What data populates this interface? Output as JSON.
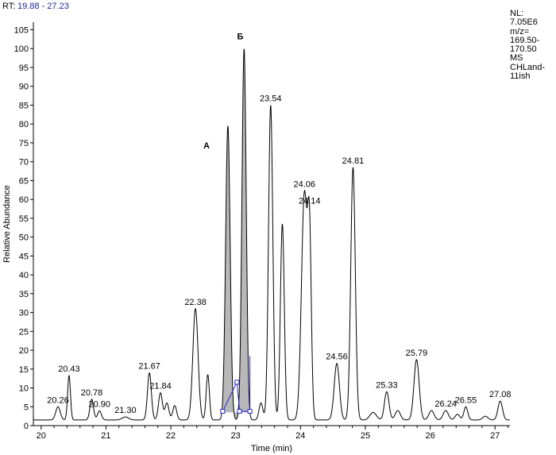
{
  "header": {
    "rt_label": "RT:",
    "rt_range": "19.88 - 27.23",
    "info_lines": [
      "NL:",
      "7.05E6",
      "m/z=",
      "169.50-",
      "170.50",
      "MS",
      "CHLand-",
      "11ish"
    ]
  },
  "chart_data": {
    "type": "line",
    "xlabel": "Time (min)",
    "ylabel": "Relative Abundance",
    "xlim": [
      19.88,
      27.23
    ],
    "ylim": [
      0,
      107
    ],
    "xticks": [
      "20",
      "21",
      "22",
      "23",
      "24",
      "25",
      "26",
      "27"
    ],
    "yticks": [
      "0",
      "5",
      "10",
      "15",
      "20",
      "25",
      "30",
      "35",
      "40",
      "45",
      "50",
      "55",
      "60",
      "65",
      "70",
      "75",
      "80",
      "85",
      "90",
      "95",
      "100",
      "105"
    ],
    "baseline": 1.5,
    "peaks": [
      {
        "x": 20.26,
        "y": 3.5,
        "w": 0.035,
        "label": "20.26"
      },
      {
        "x": 20.43,
        "y": 11.8,
        "w": 0.022,
        "label": "20.43"
      },
      {
        "x": 20.78,
        "y": 5.5,
        "w": 0.028,
        "label": "20.78"
      },
      {
        "x": 20.9,
        "y": 2.4,
        "w": 0.03,
        "label": "20.90"
      },
      {
        "x": 21.3,
        "y": 0.8,
        "w": 0.05,
        "label": "21.30"
      },
      {
        "x": 21.67,
        "y": 12.5,
        "w": 0.03,
        "label": "21.67"
      },
      {
        "x": 21.84,
        "y": 7.2,
        "w": 0.03,
        "label": "21.84"
      },
      {
        "x": 21.94,
        "y": 4.5,
        "w": 0.03,
        "label": ""
      },
      {
        "x": 22.06,
        "y": 3.8,
        "w": 0.03,
        "label": ""
      },
      {
        "x": 22.38,
        "y": 29.5,
        "w": 0.04,
        "label": "22.38"
      },
      {
        "x": 22.57,
        "y": 12.0,
        "w": 0.025,
        "label": ""
      },
      {
        "x": 22.88,
        "y": 78.0,
        "w": 0.035,
        "label": ""
      },
      {
        "x": 23.13,
        "y": 98.5,
        "w": 0.033,
        "label": ""
      },
      {
        "x": 23.39,
        "y": 4.5,
        "w": 0.03,
        "label": ""
      },
      {
        "x": 23.54,
        "y": 83.5,
        "w": 0.033,
        "label": "23.54"
      },
      {
        "x": 23.72,
        "y": 52.0,
        "w": 0.03,
        "label": ""
      },
      {
        "x": 24.06,
        "y": 60.0,
        "w": 0.045,
        "label": "24.06"
      },
      {
        "x": 24.14,
        "y": 44.0,
        "w": 0.028,
        "label": "24.14"
      },
      {
        "x": 24.56,
        "y": 15.0,
        "w": 0.04,
        "label": "24.56"
      },
      {
        "x": 24.81,
        "y": 67.0,
        "w": 0.035,
        "label": "24.81"
      },
      {
        "x": 25.12,
        "y": 2.0,
        "w": 0.05,
        "label": ""
      },
      {
        "x": 25.33,
        "y": 7.5,
        "w": 0.035,
        "label": "25.33"
      },
      {
        "x": 25.5,
        "y": 2.5,
        "w": 0.04,
        "label": ""
      },
      {
        "x": 25.79,
        "y": 16.0,
        "w": 0.04,
        "label": "25.79"
      },
      {
        "x": 26.02,
        "y": 2.5,
        "w": 0.04,
        "label": ""
      },
      {
        "x": 26.24,
        "y": 2.5,
        "w": 0.04,
        "label": "26.24"
      },
      {
        "x": 26.42,
        "y": 1.5,
        "w": 0.035,
        "label": ""
      },
      {
        "x": 26.55,
        "y": 3.5,
        "w": 0.03,
        "label": "26.55"
      },
      {
        "x": 26.85,
        "y": 1.0,
        "w": 0.04,
        "label": ""
      },
      {
        "x": 27.08,
        "y": 5.0,
        "w": 0.035,
        "label": "27.08"
      }
    ],
    "annotations": [
      {
        "text": "А",
        "x": 22.55,
        "y": 73.5
      },
      {
        "text": "Б",
        "x": 23.07,
        "y": 102.5
      }
    ],
    "shaded_regions": [
      {
        "name": "A",
        "x_start": 22.8,
        "x_end": 23.02,
        "color": "#b8b8b8"
      },
      {
        "name": "B",
        "x_start": 23.02,
        "x_end": 23.22,
        "color": "#b8b8b8"
      }
    ],
    "integration_markers": {
      "color": "#2a2acc",
      "points": [
        [
          22.8,
          3.8
        ],
        [
          23.02,
          11.5
        ],
        [
          23.06,
          3.8
        ],
        [
          23.22,
          3.8
        ]
      ]
    }
  }
}
